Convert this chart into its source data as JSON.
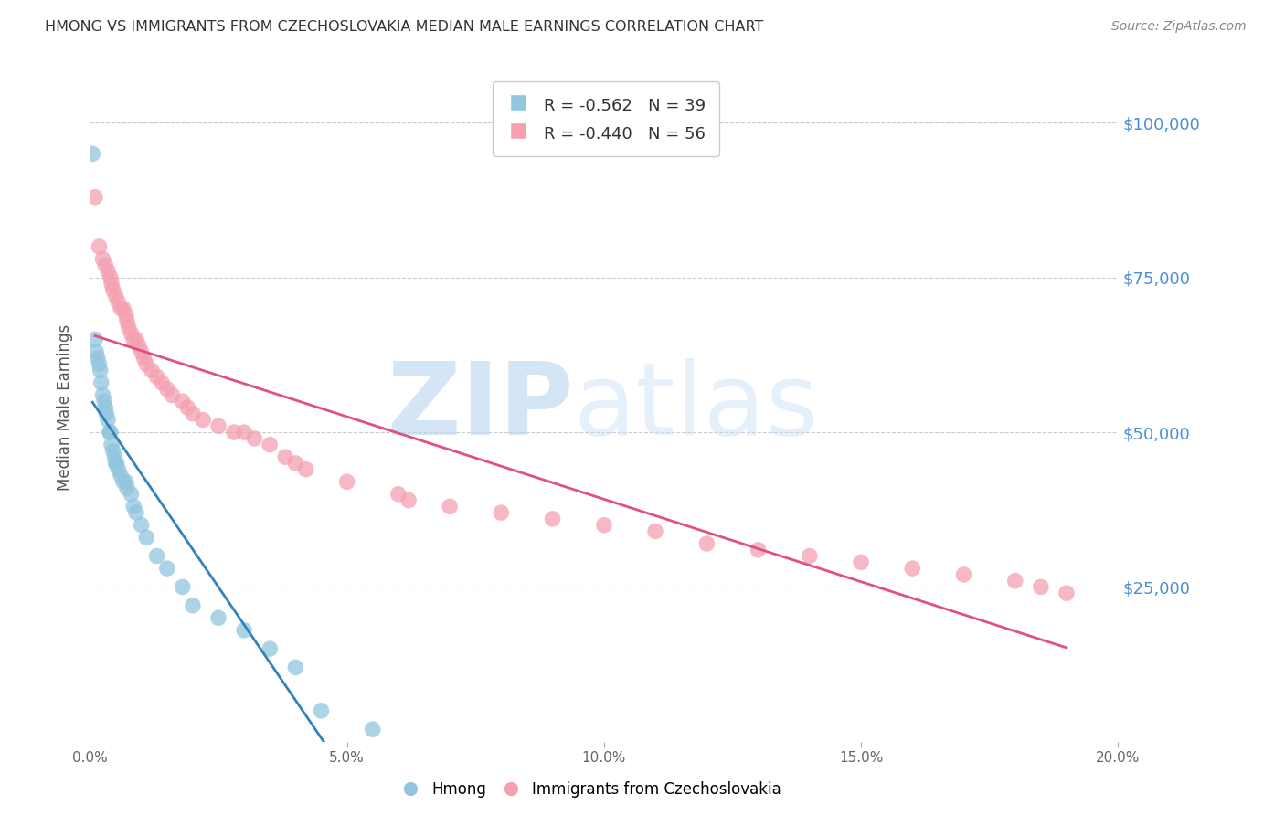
{
  "title": "HMONG VS IMMIGRANTS FROM CZECHOSLOVAKIA MEDIAN MALE EARNINGS CORRELATION CHART",
  "source": "Source: ZipAtlas.com",
  "ylabel": "Median Male Earnings",
  "xlabel_ticks": [
    "0.0%",
    "5.0%",
    "10.0%",
    "15.0%",
    "20.0%"
  ],
  "xlabel_vals": [
    0.0,
    5.0,
    10.0,
    15.0,
    20.0
  ],
  "ytick_labels": [
    "$25,000",
    "$50,000",
    "$75,000",
    "$100,000"
  ],
  "ytick_vals": [
    25000,
    50000,
    75000,
    100000
  ],
  "xlim": [
    0.0,
    20.0
  ],
  "ylim": [
    0,
    108000
  ],
  "background_color": "#ffffff",
  "grid_color": "#cccccc",
  "title_color": "#333333",
  "axis_label_color": "#4a90d9",
  "hmong": {
    "name": "Hmong",
    "R": -0.562,
    "N": 39,
    "color": "#92c5de",
    "line_color": "#3182bd",
    "x": [
      0.05,
      0.1,
      0.12,
      0.15,
      0.18,
      0.2,
      0.22,
      0.25,
      0.28,
      0.3,
      0.32,
      0.35,
      0.38,
      0.4,
      0.42,
      0.45,
      0.48,
      0.5,
      0.52,
      0.55,
      0.6,
      0.65,
      0.7,
      0.72,
      0.8,
      0.85,
      0.9,
      1.0,
      1.1,
      1.3,
      1.5,
      1.8,
      2.0,
      2.5,
      3.0,
      3.5,
      4.0,
      4.5,
      5.5
    ],
    "y": [
      95000,
      65000,
      63000,
      62000,
      61000,
      60000,
      58000,
      56000,
      55000,
      54000,
      53000,
      52000,
      50000,
      50000,
      48000,
      47000,
      46000,
      45000,
      45000,
      44000,
      43000,
      42000,
      42000,
      41000,
      40000,
      38000,
      37000,
      35000,
      33000,
      30000,
      28000,
      25000,
      22000,
      20000,
      18000,
      15000,
      12000,
      5000,
      2000
    ]
  },
  "czech": {
    "name": "Immigrants from Czechoslovakia",
    "R": -0.44,
    "N": 56,
    "color": "#f4a0b0",
    "line_color": "#e05080",
    "x": [
      0.1,
      0.18,
      0.25,
      0.3,
      0.35,
      0.4,
      0.42,
      0.45,
      0.5,
      0.55,
      0.6,
      0.65,
      0.7,
      0.72,
      0.75,
      0.8,
      0.85,
      0.9,
      0.95,
      1.0,
      1.05,
      1.1,
      1.2,
      1.3,
      1.4,
      1.5,
      1.6,
      1.8,
      1.9,
      2.0,
      2.2,
      2.5,
      2.8,
      3.0,
      3.2,
      3.5,
      3.8,
      4.0,
      4.2,
      5.0,
      6.0,
      6.2,
      7.0,
      8.0,
      9.0,
      10.0,
      11.0,
      12.0,
      13.0,
      14.0,
      15.0,
      16.0,
      17.0,
      18.0,
      18.5,
      19.0
    ],
    "y": [
      88000,
      80000,
      78000,
      77000,
      76000,
      75000,
      74000,
      73000,
      72000,
      71000,
      70000,
      70000,
      69000,
      68000,
      67000,
      66000,
      65000,
      65000,
      64000,
      63000,
      62000,
      61000,
      60000,
      59000,
      58000,
      57000,
      56000,
      55000,
      54000,
      53000,
      52000,
      51000,
      50000,
      50000,
      49000,
      48000,
      46000,
      45000,
      44000,
      42000,
      40000,
      39000,
      38000,
      37000,
      36000,
      35000,
      34000,
      32000,
      31000,
      30000,
      29000,
      28000,
      27000,
      26000,
      25000,
      24000
    ]
  },
  "hmong_line": {
    "x0": 0.0,
    "y0": 65000,
    "x1": 5.5,
    "y1": 0
  },
  "czech_line": {
    "x0": 0.0,
    "y0": 65000,
    "x1": 20.0,
    "y1": 20000
  }
}
